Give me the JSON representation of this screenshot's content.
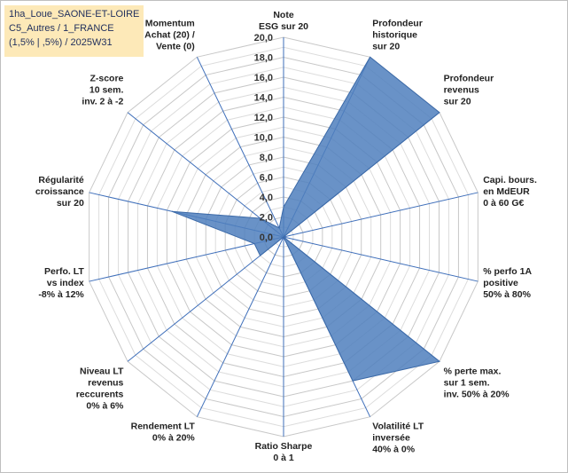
{
  "title_lines": [
    "1ha_Loue_SAONE-ET-LOIRE",
    "C5_Autres / 1_FRANCE",
    "(1,5% | ,5%) / 2025W31"
  ],
  "chart_data": {
    "type": "radar",
    "ylim": [
      0,
      20
    ],
    "tick_labels": [
      "0,0",
      "2,0",
      "4,0",
      "6,0",
      "8,0",
      "10,0",
      "12,0",
      "14,0",
      "16,0",
      "18,0",
      "20,0"
    ],
    "gridlines": true,
    "categories": [
      [
        "Note",
        "ESG sur 20"
      ],
      [
        "Profondeur",
        "historique",
        "sur 20"
      ],
      [
        "Profondeur",
        "revenus",
        "sur 20"
      ],
      [
        "Capi. bours.",
        "en MdEUR",
        "0 à 60 G€"
      ],
      [
        "% perfo 1A",
        "positive",
        "50% à 80%"
      ],
      [
        "% perte max.",
        "sur 1 sem.",
        "inv. 50% à 20%"
      ],
      [
        "Volatilité LT",
        "inversée",
        "40% à 0%"
      ],
      [
        "Ratio Sharpe",
        "0 à 1"
      ],
      [
        "Rendement LT",
        "0% à 20%"
      ],
      [
        "Niveau LT",
        "revenus",
        "reccurents",
        "0% à 6%"
      ],
      [
        "Perfo. LT",
        "vs index",
        "-8% à 12%"
      ],
      [
        "Régularité",
        "croissance",
        "sur 20"
      ],
      [
        "Z-score",
        "10 sem.",
        "inv. 2 à -2"
      ],
      [
        "Momentum",
        "Achat (20) /",
        "Vente (0)"
      ]
    ],
    "series": [
      {
        "values": [
          3,
          20,
          20,
          0,
          0,
          20,
          16,
          0,
          0,
          3,
          3,
          11.5,
          3,
          1
        ],
        "color": "#4f7fbd"
      }
    ]
  }
}
